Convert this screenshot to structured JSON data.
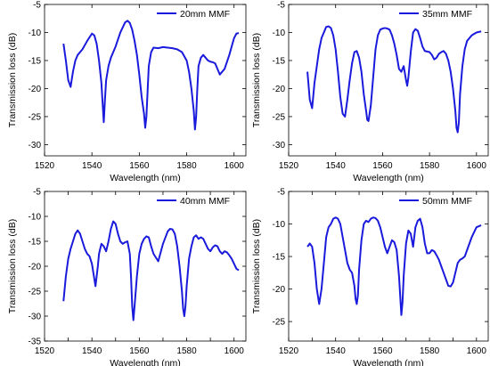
{
  "chart_data": [
    {
      "type": "line",
      "xlabel": "Wavelength (nm)",
      "ylabel": "Transmission loss (dB)",
      "xlim": [
        1520,
        1605
      ],
      "ylim": [
        -32,
        -5
      ],
      "xticks": [
        1520,
        1540,
        1560,
        1580,
        1600
      ],
      "yticks": [
        -5,
        -10,
        -15,
        -20,
        -25,
        -30
      ],
      "legend_position": "top-right",
      "color": "#1a1adc",
      "series": [
        {
          "name": "20mm MMF",
          "x": [
            1528,
            1529,
            1530,
            1531,
            1532,
            1533,
            1534,
            1536,
            1538,
            1540,
            1541,
            1542,
            1543,
            1544,
            1544.5,
            1545,
            1545.5,
            1546,
            1547,
            1548,
            1550,
            1552,
            1554,
            1555,
            1556,
            1557,
            1558,
            1559,
            1560,
            1561,
            1562,
            1562.5,
            1563,
            1563.5,
            1564,
            1565,
            1566,
            1568,
            1570,
            1572,
            1574,
            1576,
            1578,
            1580,
            1581,
            1582,
            1583,
            1583.5,
            1584,
            1584.5,
            1585,
            1586,
            1587,
            1588,
            1589,
            1590,
            1591,
            1592,
            1593,
            1594,
            1596,
            1598,
            1600,
            1601,
            1602
          ],
          "values": [
            -12,
            -15,
            -18.5,
            -19.7,
            -17,
            -15,
            -14,
            -13,
            -11.5,
            -10.2,
            -10.5,
            -12,
            -15,
            -19,
            -22.5,
            -26,
            -22,
            -18.5,
            -16,
            -14.5,
            -12.5,
            -10,
            -8.2,
            -7.9,
            -8.3,
            -9.5,
            -11.5,
            -14,
            -17.5,
            -21.5,
            -24.5,
            -27,
            -25,
            -20.5,
            -16,
            -13.5,
            -12.7,
            -12.8,
            -12.6,
            -12.7,
            -12.8,
            -13,
            -13.5,
            -15,
            -17,
            -20,
            -24,
            -27.3,
            -25,
            -20,
            -16,
            -14.5,
            -14,
            -14.5,
            -15,
            -15.2,
            -15.3,
            -15.5,
            -16.5,
            -17.5,
            -16.5,
            -14,
            -11,
            -10.2,
            -10.1
          ]
        }
      ]
    },
    {
      "type": "line",
      "xlabel": "Wavelength (nm)",
      "ylabel": "Transmission loss (dB)",
      "xlim": [
        1520,
        1605
      ],
      "ylim": [
        -32,
        -5
      ],
      "xticks": [
        1520,
        1540,
        1560,
        1580,
        1600
      ],
      "yticks": [
        -5,
        -10,
        -15,
        -20,
        -25,
        -30
      ],
      "legend_position": "top-right",
      "color": "#1a1adc",
      "series": [
        {
          "name": "35mm MMF",
          "x": [
            1528,
            1529,
            1530,
            1531,
            1532,
            1533,
            1534,
            1536,
            1537,
            1538,
            1539,
            1540,
            1541,
            1542,
            1543,
            1544,
            1545,
            1546,
            1547,
            1548,
            1549,
            1550,
            1551,
            1552,
            1553,
            1553.5,
            1554,
            1555,
            1556,
            1557,
            1558,
            1559,
            1560,
            1561,
            1562,
            1563,
            1564,
            1565,
            1566,
            1567,
            1568,
            1569,
            1570,
            1570.5,
            1571,
            1572,
            1573,
            1574,
            1575,
            1576,
            1577,
            1578,
            1579,
            1580,
            1581,
            1582,
            1583,
            1584,
            1585,
            1586,
            1587,
            1588,
            1589,
            1590,
            1591,
            1591.5,
            1592,
            1592.5,
            1593,
            1594,
            1595,
            1596,
            1598,
            1600,
            1602
          ],
          "values": [
            -17,
            -22,
            -23.5,
            -19,
            -16,
            -13,
            -11,
            -9,
            -8.9,
            -9.2,
            -10.5,
            -13,
            -17,
            -21.5,
            -24.5,
            -25,
            -22,
            -18.5,
            -15.5,
            -13.5,
            -13.3,
            -14.5,
            -17,
            -21,
            -24,
            -25.6,
            -25.8,
            -23,
            -18,
            -13,
            -10.5,
            -9.5,
            -9.3,
            -9.2,
            -9.3,
            -9.5,
            -10.5,
            -12,
            -14,
            -16.5,
            -17,
            -16,
            -18.5,
            -19.5,
            -18,
            -13.5,
            -10,
            -9.4,
            -9.7,
            -11,
            -12.5,
            -13.3,
            -13.4,
            -13.5,
            -14,
            -14.8,
            -14.5,
            -13.8,
            -13.5,
            -13.3,
            -13.8,
            -15,
            -17,
            -20,
            -24,
            -27,
            -27.8,
            -26,
            -21,
            -16,
            -13,
            -11.5,
            -10.5,
            -10,
            -9.8
          ]
        }
      ]
    },
    {
      "type": "line",
      "xlabel": "Wavelength (nm)",
      "ylabel": "Transmission loss (dB)",
      "xlim": [
        1520,
        1605
      ],
      "ylim": [
        -35,
        -5
      ],
      "xticks": [
        1520,
        1530,
        1540,
        1550,
        1560,
        1570,
        1580,
        1590,
        1600
      ],
      "xticklabels": [
        "1520",
        "",
        "1540",
        "",
        "1560",
        "",
        "1580",
        "",
        "1600"
      ],
      "yticks": [
        -5,
        -10,
        -15,
        -20,
        -25,
        -30,
        -35
      ],
      "legend_position": "top-right",
      "color": "#1a1adc",
      "series": [
        {
          "name": "40mm MMF",
          "x": [
            1528,
            1529,
            1530,
            1531,
            1532,
            1533,
            1534,
            1535,
            1536,
            1537,
            1538,
            1539,
            1540,
            1541,
            1541.5,
            1542,
            1542.5,
            1543,
            1544,
            1545,
            1546,
            1547,
            1548,
            1549,
            1550,
            1551,
            1552,
            1553,
            1554,
            1555,
            1556,
            1556.5,
            1557,
            1557.5,
            1558,
            1559,
            1560,
            1561,
            1562,
            1563,
            1564,
            1565,
            1566,
            1568,
            1570,
            1572,
            1573,
            1574,
            1575,
            1576,
            1577,
            1578,
            1578.5,
            1579,
            1579.5,
            1580,
            1581,
            1582,
            1583,
            1584,
            1585,
            1586,
            1587,
            1588,
            1589,
            1590,
            1591,
            1592,
            1593,
            1594,
            1595,
            1596,
            1597,
            1598,
            1599,
            1600,
            1601,
            1602
          ],
          "values": [
            -27,
            -22,
            -18.5,
            -16.5,
            -15,
            -13.5,
            -12.8,
            -13.5,
            -15,
            -16.5,
            -17.5,
            -18,
            -19.5,
            -22.5,
            -24,
            -22,
            -20,
            -17.5,
            -15.5,
            -16,
            -17,
            -15,
            -12.5,
            -11,
            -11.5,
            -13.5,
            -15,
            -15.5,
            -15.2,
            -15,
            -17.5,
            -22,
            -28,
            -30.8,
            -28,
            -22,
            -17.5,
            -15.5,
            -14.5,
            -14,
            -14.2,
            -16,
            -17.5,
            -19,
            -15.5,
            -13,
            -12.5,
            -12.6,
            -13.5,
            -16,
            -20,
            -25,
            -28.5,
            -30,
            -28,
            -24,
            -18.5,
            -16,
            -14.2,
            -13.8,
            -14.5,
            -14.2,
            -14.5,
            -15.5,
            -16.5,
            -17,
            -16.2,
            -15.8,
            -16,
            -17,
            -17.5,
            -17,
            -17.2,
            -17.8,
            -18.5,
            -19.5,
            -20.5,
            -20.8
          ]
        }
      ]
    },
    {
      "type": "line",
      "xlabel": "Wavelength (nm)",
      "ylabel": "Transmission loss (dB)",
      "xlim": [
        1520,
        1605
      ],
      "ylim": [
        -28,
        -5
      ],
      "xticks": [
        1520,
        1530,
        1540,
        1550,
        1560,
        1570,
        1580,
        1590,
        1600
      ],
      "xticklabels": [
        "1520",
        "",
        "1540",
        "",
        "1560",
        "",
        "1580",
        "",
        "1600"
      ],
      "yticks": [
        -5,
        -10,
        -15,
        -20,
        -25
      ],
      "legend_position": "top-right",
      "color": "#1a1adc",
      "series": [
        {
          "name": "50mm MMF",
          "x": [
            1528,
            1529,
            1530,
            1531,
            1532,
            1533,
            1534,
            1535,
            1536,
            1537,
            1538,
            1539,
            1540,
            1541,
            1542,
            1543,
            1544,
            1545,
            1546,
            1547,
            1548,
            1548.5,
            1549,
            1549.5,
            1550,
            1551,
            1552,
            1553,
            1554,
            1555,
            1556,
            1557,
            1558,
            1559,
            1560,
            1561,
            1562,
            1563,
            1564,
            1565,
            1566,
            1567,
            1567.5,
            1568,
            1568.5,
            1569,
            1570,
            1571,
            1572,
            1573,
            1574,
            1575,
            1576,
            1577,
            1578,
            1579,
            1580,
            1581,
            1582,
            1583,
            1584,
            1585,
            1586,
            1587,
            1588,
            1589,
            1590,
            1591,
            1592,
            1593,
            1594,
            1595,
            1596,
            1598,
            1600,
            1602
          ],
          "values": [
            -13.5,
            -13,
            -13.5,
            -16,
            -20,
            -22.3,
            -20,
            -16,
            -12,
            -10.5,
            -10,
            -9.2,
            -9,
            -9.2,
            -10,
            -12,
            -14,
            -16,
            -17,
            -17.5,
            -19.5,
            -21.5,
            -22.3,
            -21,
            -17,
            -12.5,
            -10,
            -9.5,
            -9.7,
            -9.2,
            -9,
            -9.1,
            -9.5,
            -10.5,
            -12,
            -13.5,
            -14.5,
            -13.5,
            -12.5,
            -12.8,
            -14,
            -18,
            -21,
            -24,
            -22,
            -18,
            -13,
            -11,
            -11.5,
            -13.5,
            -10.5,
            -9.5,
            -9.2,
            -10.5,
            -13,
            -14.5,
            -14.5,
            -14,
            -14.2,
            -14.8,
            -15.5,
            -16.5,
            -17.5,
            -18.5,
            -19.5,
            -19.6,
            -19,
            -17.5,
            -16,
            -15.5,
            -15.3,
            -15,
            -14,
            -12,
            -10.5,
            -10.2
          ]
        }
      ]
    }
  ]
}
